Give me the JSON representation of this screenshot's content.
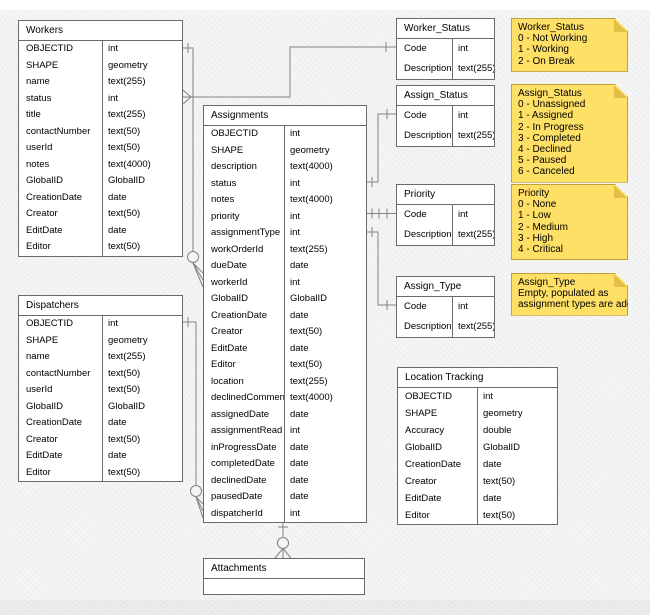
{
  "canvas": {
    "background_color": "#f5f5f5",
    "table_fill": "#ffffff",
    "table_border_color": "#6a6a6a",
    "line_color": "#828282",
    "note_fill": "#ffe066",
    "note_border_color": "#c0a13c",
    "note_fold_color": "#e3bf48"
  },
  "tables": [
    {
      "id": "workers",
      "title": "Workers",
      "fields": [
        {
          "name": "OBJECTID",
          "type": "int"
        },
        {
          "name": "SHAPE",
          "type": "geometry"
        },
        {
          "name": "name",
          "type": "text(255)"
        },
        {
          "name": "status",
          "type": "int"
        },
        {
          "name": "title",
          "type": "text(255)"
        },
        {
          "name": "contactNumber",
          "type": "text(50)"
        },
        {
          "name": "userId",
          "type": "text(50)"
        },
        {
          "name": "notes",
          "type": "text(4000)"
        },
        {
          "name": "GlobalID",
          "type": "GlobalID"
        },
        {
          "name": "CreationDate",
          "type": "date"
        },
        {
          "name": "Creator",
          "type": "text(50)"
        },
        {
          "name": "EditDate",
          "type": "date"
        },
        {
          "name": "Editor",
          "type": "text(50)"
        }
      ]
    },
    {
      "id": "dispatchers",
      "title": "Dispatchers",
      "fields": [
        {
          "name": "OBJECTID",
          "type": "int"
        },
        {
          "name": "SHAPE",
          "type": "geometry"
        },
        {
          "name": "name",
          "type": "text(255)"
        },
        {
          "name": "contactNumber",
          "type": "text(50)"
        },
        {
          "name": "userId",
          "type": "text(50)"
        },
        {
          "name": "GlobalID",
          "type": "GlobalID"
        },
        {
          "name": "CreationDate",
          "type": "date"
        },
        {
          "name": "Creator",
          "type": "text(50)"
        },
        {
          "name": "EditDate",
          "type": "date"
        },
        {
          "name": "Editor",
          "type": "text(50)"
        }
      ]
    },
    {
      "id": "assignments",
      "title": "Assignments",
      "fields": [
        {
          "name": "OBJECTID",
          "type": "int"
        },
        {
          "name": "SHAPE",
          "type": "geometry"
        },
        {
          "name": "description",
          "type": "text(4000)"
        },
        {
          "name": "status",
          "type": "int"
        },
        {
          "name": "notes",
          "type": "text(4000)"
        },
        {
          "name": "priority",
          "type": "int"
        },
        {
          "name": "assignmentType",
          "type": "int"
        },
        {
          "name": "workOrderId",
          "type": "text(255)"
        },
        {
          "name": "dueDate",
          "type": "date"
        },
        {
          "name": "workerId",
          "type": "int"
        },
        {
          "name": "GlobalID",
          "type": "GlobalID"
        },
        {
          "name": "CreationDate",
          "type": "date"
        },
        {
          "name": "Creator",
          "type": "text(50)"
        },
        {
          "name": "EditDate",
          "type": "date"
        },
        {
          "name": "Editor",
          "type": "text(50)"
        },
        {
          "name": "location",
          "type": "text(255)"
        },
        {
          "name": "declinedComment",
          "type": "text(4000)"
        },
        {
          "name": "assignedDate",
          "type": "date"
        },
        {
          "name": "assignmentRead",
          "type": "int"
        },
        {
          "name": "inProgressDate",
          "type": "date"
        },
        {
          "name": "completedDate",
          "type": "date"
        },
        {
          "name": "declinedDate",
          "type": "date"
        },
        {
          "name": "pausedDate",
          "type": "date"
        },
        {
          "name": "dispatcherId",
          "type": "int"
        }
      ]
    },
    {
      "id": "worker_status",
      "title": "Worker_Status",
      "fields": [
        {
          "name": "Code",
          "type": "int"
        },
        {
          "name": "Description",
          "type": "text(255)"
        }
      ]
    },
    {
      "id": "assign_status",
      "title": "Assign_Status",
      "fields": [
        {
          "name": "Code",
          "type": "int"
        },
        {
          "name": "Description",
          "type": "text(255)"
        }
      ]
    },
    {
      "id": "priority",
      "title": "Priority",
      "fields": [
        {
          "name": "Code",
          "type": "int"
        },
        {
          "name": "Description",
          "type": "text(255)"
        }
      ]
    },
    {
      "id": "assign_type",
      "title": "Assign_Type",
      "fields": [
        {
          "name": "Code",
          "type": "int"
        },
        {
          "name": "Description",
          "type": "text(255)"
        }
      ]
    },
    {
      "id": "location_tracking",
      "title": "Location Tracking",
      "fields": [
        {
          "name": "OBJECTID",
          "type": "int"
        },
        {
          "name": "SHAPE",
          "type": "geometry"
        },
        {
          "name": "Accuracy",
          "type": "double"
        },
        {
          "name": "GlobalID",
          "type": "GlobalID"
        },
        {
          "name": "CreationDate",
          "type": "date"
        },
        {
          "name": "Creator",
          "type": "text(50)"
        },
        {
          "name": "EditDate",
          "type": "date"
        },
        {
          "name": "Editor",
          "type": "text(50)"
        }
      ]
    },
    {
      "id": "attachments",
      "title": "Attachments",
      "fields": []
    }
  ],
  "notes": [
    {
      "id": "worker_status",
      "title": "Worker_Status",
      "lines": [
        "0 - Not Working",
        "1 - Working",
        "2 - On Break"
      ]
    },
    {
      "id": "assign_status",
      "title": "Assign_Status",
      "lines": [
        "0 - Unassigned",
        "1 - Assigned",
        "2 - In Progress",
        "3 - Completed",
        "4 - Declined",
        "5 - Paused",
        "6 - Canceled"
      ]
    },
    {
      "id": "priority",
      "title": "Priority",
      "lines": [
        "0 - None",
        "1 - Low",
        "2 - Medium",
        "3 - High",
        "4 - Critical"
      ]
    },
    {
      "id": "assign_type",
      "title": "Assign_Type",
      "lines": [
        "Empty, populated as",
        "assignment types are added"
      ]
    }
  ],
  "relationships": [
    {
      "from": "Workers.OBJECTID",
      "to": "Assignments.workerId",
      "source_marker": "one",
      "target_marker": "zero-or-many"
    },
    {
      "from": "Dispatchers.OBJECTID",
      "to": "Assignments.dispatcherId",
      "source_marker": "one",
      "target_marker": "zero-or-many"
    },
    {
      "from": "Workers.status",
      "to": "Worker_Status.Code",
      "source_marker": "many",
      "target_marker": "one"
    },
    {
      "from": "Assignments.status",
      "to": "Assign_Status.Code",
      "source_marker": "one",
      "target_marker": "one"
    },
    {
      "from": "Assignments.priority",
      "to": "Priority.Code",
      "source_marker": "one",
      "target_marker": "one"
    },
    {
      "from": "Assignments.assignmentType",
      "to": "Assign_Type.Code",
      "source_marker": "one",
      "target_marker": "one"
    },
    {
      "from": "Assignments",
      "to": "Attachments",
      "source_marker": "one",
      "target_marker": "zero-or-many"
    }
  ]
}
